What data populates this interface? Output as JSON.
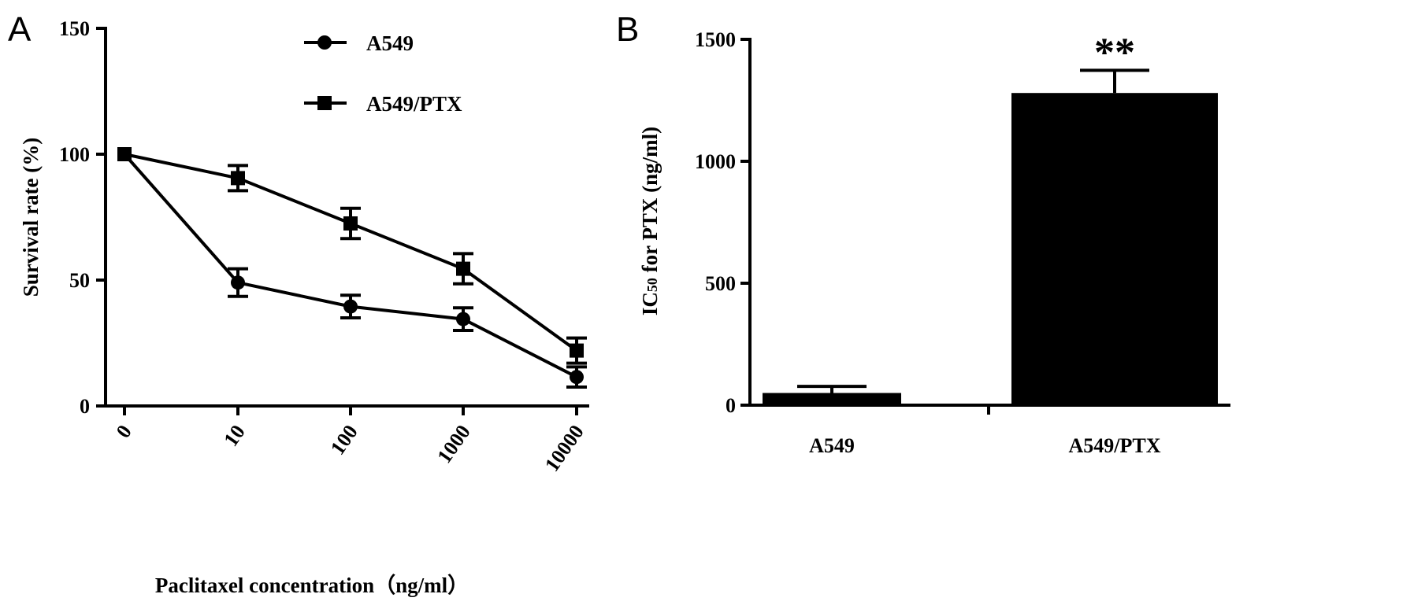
{
  "chart_data": [
    {
      "panel": "A",
      "type": "line",
      "xlabel": "Paclitaxel concentration（ng/ml）",
      "ylabel": "Survival rate (%)",
      "categories": [
        "0",
        "10",
        "100",
        "1000",
        "10000"
      ],
      "ylim": [
        0,
        150
      ],
      "yticks": [
        0,
        50,
        100,
        150
      ],
      "legend": {
        "placement": "top-center"
      },
      "series": [
        {
          "name": "A549",
          "marker": "circle",
          "values": [
            100,
            49,
            39.5,
            34.5,
            11.5
          ],
          "errors": [
            0,
            5.5,
            4.5,
            4.5,
            4
          ]
        },
        {
          "name": "A549/PTX",
          "marker": "square",
          "values": [
            100,
            90.5,
            72.5,
            54.5,
            22
          ],
          "errors": [
            0,
            5,
            6,
            6,
            5
          ]
        }
      ]
    },
    {
      "panel": "B",
      "type": "bar",
      "ylabel_main": "IC",
      "ylabel_sub": "50",
      "ylabel_rest": " for PTX (ng/ml)",
      "categories": [
        "A549",
        "A549/PTX"
      ],
      "values": [
        50,
        1280
      ],
      "errors": [
        27,
        93
      ],
      "ylim": [
        0,
        1500
      ],
      "yticks": [
        0,
        500,
        1000,
        1500
      ],
      "annotations": [
        {
          "category": "A549/PTX",
          "text": "**"
        }
      ]
    }
  ]
}
